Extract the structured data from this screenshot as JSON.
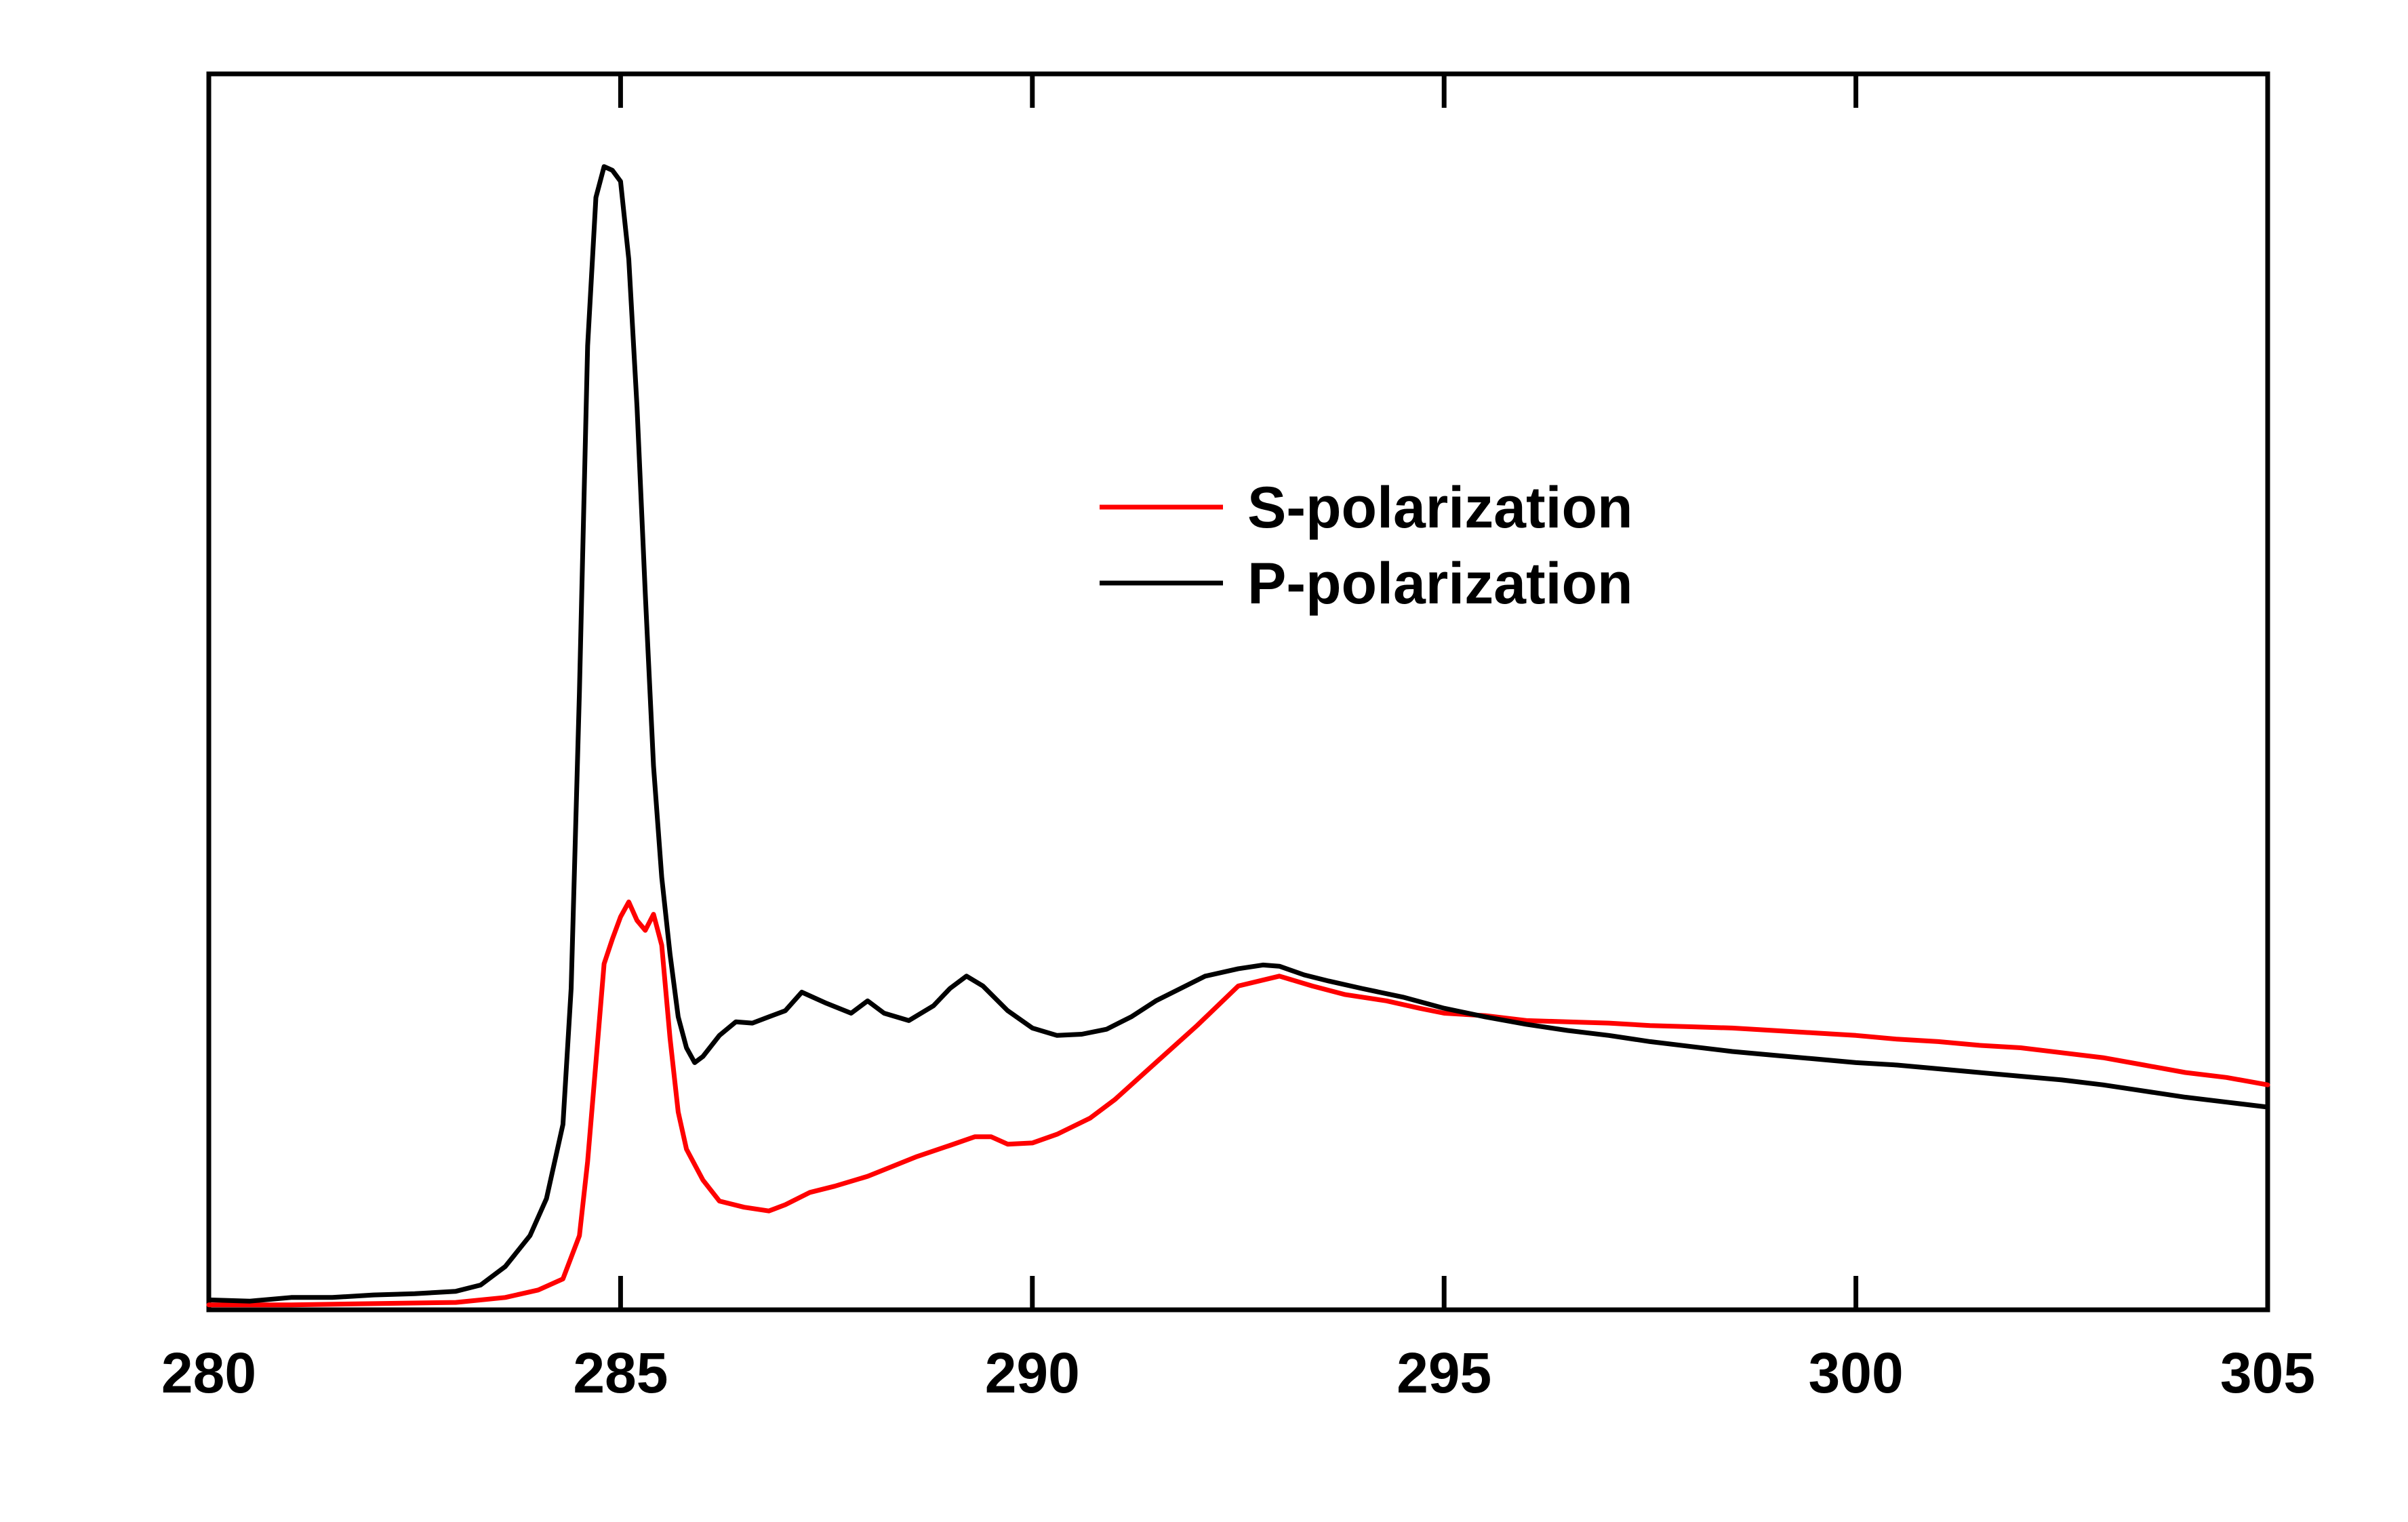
{
  "chart_data": {
    "type": "line",
    "xlim": [
      280,
      305
    ],
    "ylim": [
      0,
      1
    ],
    "y_axis_labels_shown": false,
    "grid": false,
    "legend_placement": "center-right",
    "x_ticks": [
      {
        "value": 280,
        "label": "280"
      },
      {
        "value": 285,
        "label": "285"
      },
      {
        "value": 290,
        "label": "290"
      },
      {
        "value": 295,
        "label": "295"
      },
      {
        "value": 300,
        "label": "300"
      },
      {
        "value": 305,
        "label": "305"
      }
    ],
    "series": [
      {
        "name": "S-polarization",
        "color": "#ff0000",
        "points": [
          [
            280.0,
            0.004
          ],
          [
            281.0,
            0.004
          ],
          [
            282.0,
            0.005
          ],
          [
            283.0,
            0.006
          ],
          [
            283.6,
            0.01
          ],
          [
            284.0,
            0.016
          ],
          [
            284.3,
            0.025
          ],
          [
            284.5,
            0.06
          ],
          [
            284.6,
            0.12
          ],
          [
            284.7,
            0.2
          ],
          [
            284.8,
            0.28
          ],
          [
            284.9,
            0.3
          ],
          [
            285.0,
            0.318
          ],
          [
            285.1,
            0.33
          ],
          [
            285.2,
            0.315
          ],
          [
            285.3,
            0.307
          ],
          [
            285.4,
            0.32
          ],
          [
            285.5,
            0.295
          ],
          [
            285.6,
            0.22
          ],
          [
            285.7,
            0.16
          ],
          [
            285.8,
            0.13
          ],
          [
            286.0,
            0.105
          ],
          [
            286.2,
            0.088
          ],
          [
            286.5,
            0.083
          ],
          [
            286.8,
            0.08
          ],
          [
            287.0,
            0.085
          ],
          [
            287.3,
            0.095
          ],
          [
            287.6,
            0.1
          ],
          [
            288.0,
            0.108
          ],
          [
            288.3,
            0.116
          ],
          [
            288.6,
            0.124
          ],
          [
            289.0,
            0.133
          ],
          [
            289.3,
            0.14
          ],
          [
            289.5,
            0.14
          ],
          [
            289.7,
            0.134
          ],
          [
            290.0,
            0.135
          ],
          [
            290.3,
            0.142
          ],
          [
            290.7,
            0.155
          ],
          [
            291.0,
            0.17
          ],
          [
            291.5,
            0.2
          ],
          [
            292.0,
            0.23
          ],
          [
            292.5,
            0.262
          ],
          [
            293.0,
            0.27
          ],
          [
            293.4,
            0.262
          ],
          [
            293.8,
            0.255
          ],
          [
            294.3,
            0.25
          ],
          [
            294.7,
            0.244
          ],
          [
            295.0,
            0.24
          ],
          [
            295.5,
            0.238
          ],
          [
            296.0,
            0.234
          ],
          [
            296.5,
            0.233
          ],
          [
            297.0,
            0.232
          ],
          [
            297.5,
            0.23
          ],
          [
            298.0,
            0.229
          ],
          [
            298.5,
            0.228
          ],
          [
            299.0,
            0.226
          ],
          [
            299.5,
            0.224
          ],
          [
            300.0,
            0.222
          ],
          [
            300.5,
            0.219
          ],
          [
            301.0,
            0.217
          ],
          [
            301.5,
            0.214
          ],
          [
            302.0,
            0.212
          ],
          [
            302.5,
            0.208
          ],
          [
            303.0,
            0.204
          ],
          [
            303.5,
            0.198
          ],
          [
            304.0,
            0.192
          ],
          [
            304.5,
            0.188
          ],
          [
            305.0,
            0.182
          ]
        ]
      },
      {
        "name": "P-polarization",
        "color": "#000000",
        "points": [
          [
            280.0,
            0.008
          ],
          [
            280.5,
            0.007
          ],
          [
            281.0,
            0.01
          ],
          [
            281.5,
            0.01
          ],
          [
            282.0,
            0.012
          ],
          [
            282.5,
            0.013
          ],
          [
            283.0,
            0.015
          ],
          [
            283.3,
            0.02
          ],
          [
            283.6,
            0.035
          ],
          [
            283.9,
            0.06
          ],
          [
            284.1,
            0.09
          ],
          [
            284.3,
            0.15
          ],
          [
            284.4,
            0.26
          ],
          [
            284.5,
            0.5
          ],
          [
            284.6,
            0.78
          ],
          [
            284.7,
            0.9
          ],
          [
            284.8,
            0.925
          ],
          [
            284.9,
            0.922
          ],
          [
            285.0,
            0.913
          ],
          [
            285.1,
            0.85
          ],
          [
            285.2,
            0.73
          ],
          [
            285.3,
            0.58
          ],
          [
            285.4,
            0.44
          ],
          [
            285.5,
            0.35
          ],
          [
            285.6,
            0.288
          ],
          [
            285.7,
            0.237
          ],
          [
            285.8,
            0.212
          ],
          [
            285.9,
            0.2
          ],
          [
            286.0,
            0.205
          ],
          [
            286.2,
            0.222
          ],
          [
            286.4,
            0.233
          ],
          [
            286.6,
            0.232
          ],
          [
            286.8,
            0.237
          ],
          [
            287.0,
            0.242
          ],
          [
            287.2,
            0.257
          ],
          [
            287.5,
            0.248
          ],
          [
            287.8,
            0.24
          ],
          [
            288.0,
            0.25
          ],
          [
            288.2,
            0.24
          ],
          [
            288.5,
            0.234
          ],
          [
            288.8,
            0.246
          ],
          [
            289.0,
            0.26
          ],
          [
            289.2,
            0.27
          ],
          [
            289.4,
            0.262
          ],
          [
            289.7,
            0.242
          ],
          [
            290.0,
            0.228
          ],
          [
            290.3,
            0.222
          ],
          [
            290.6,
            0.223
          ],
          [
            290.9,
            0.227
          ],
          [
            291.2,
            0.237
          ],
          [
            291.5,
            0.25
          ],
          [
            291.8,
            0.26
          ],
          [
            292.1,
            0.27
          ],
          [
            292.5,
            0.276
          ],
          [
            292.8,
            0.279
          ],
          [
            293.0,
            0.278
          ],
          [
            293.3,
            0.271
          ],
          [
            293.6,
            0.266
          ],
          [
            294.0,
            0.26
          ],
          [
            294.5,
            0.253
          ],
          [
            295.0,
            0.244
          ],
          [
            295.5,
            0.237
          ],
          [
            296.0,
            0.231
          ],
          [
            296.5,
            0.226
          ],
          [
            297.0,
            0.222
          ],
          [
            297.5,
            0.217
          ],
          [
            298.0,
            0.213
          ],
          [
            298.5,
            0.209
          ],
          [
            299.0,
            0.206
          ],
          [
            299.5,
            0.203
          ],
          [
            300.0,
            0.2
          ],
          [
            300.5,
            0.198
          ],
          [
            301.0,
            0.195
          ],
          [
            301.5,
            0.192
          ],
          [
            302.0,
            0.189
          ],
          [
            302.5,
            0.186
          ],
          [
            303.0,
            0.182
          ],
          [
            303.5,
            0.177
          ],
          [
            304.0,
            0.172
          ],
          [
            304.5,
            0.168
          ],
          [
            305.0,
            0.164
          ]
        ]
      }
    ]
  }
}
